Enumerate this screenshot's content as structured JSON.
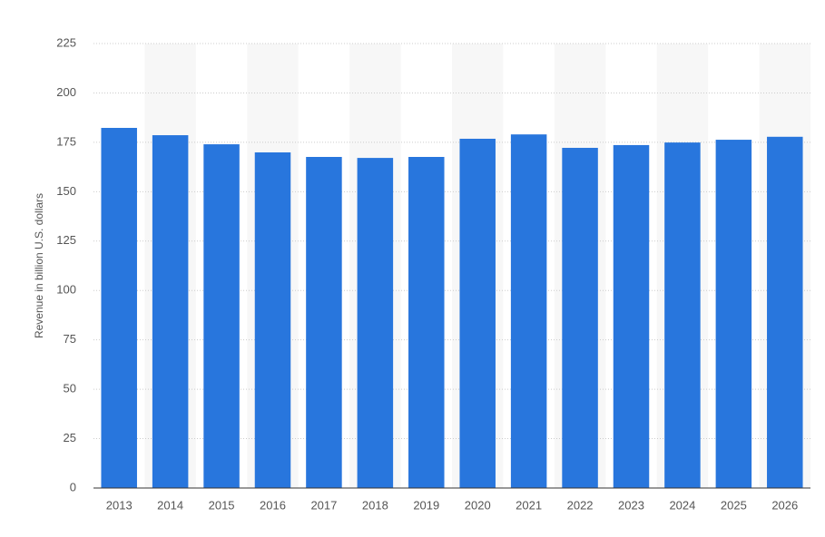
{
  "chart_data": {
    "type": "bar",
    "y_label": "Revenue in billion U.S. dollars",
    "categories": [
      "2013",
      "2014",
      "2015",
      "2016",
      "2017",
      "2018",
      "2019",
      "2020",
      "2021",
      "2022",
      "2023",
      "2024",
      "2025",
      "2026"
    ],
    "values": [
      182.3,
      178.6,
      174,
      169.9,
      167.6,
      167.1,
      167.6,
      176.8,
      179,
      172.2,
      173.6,
      174.9,
      176.3,
      177.8
    ],
    "color": "#2876dd",
    "ylim": [
      0,
      225
    ],
    "yticks": [
      0,
      25,
      50,
      75,
      100,
      125,
      150,
      175,
      200,
      225
    ],
    "grid": true
  }
}
